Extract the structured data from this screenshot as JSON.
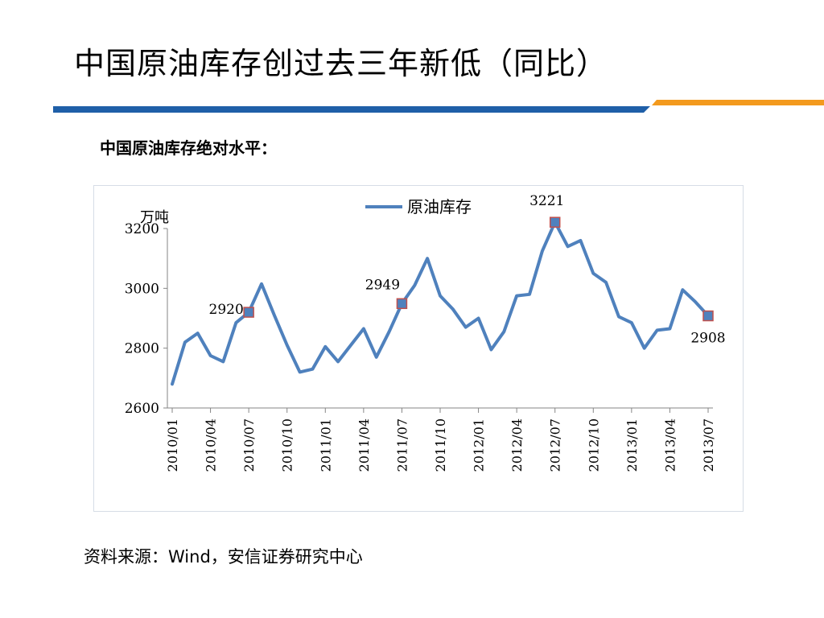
{
  "slide": {
    "title": "中国原油库存创过去三年新低（同比）",
    "subtitle": "中国原油库存绝对水平：",
    "source": "资料来源：Wind，安信证券研究中心",
    "colors": {
      "band_blue": "#1f5fa8",
      "band_orange": "#f39a1e",
      "line": "#4f81bd",
      "marker_edge": "#c0504d"
    }
  },
  "chart_data": {
    "type": "line",
    "ylabel": "万吨",
    "ylim": [
      2600,
      3200
    ],
    "yticks": [
      2600,
      2800,
      3000,
      3200
    ],
    "legend": "top-center",
    "grid": false,
    "xtick_labels": [
      "2010/01",
      "2010/04",
      "2010/07",
      "2010/10",
      "2011/01",
      "2011/04",
      "2011/07",
      "2011/10",
      "2012/01",
      "2012/04",
      "2012/07",
      "2012/10",
      "2013/01",
      "2013/04",
      "2013/07"
    ],
    "x": [
      "2010/01",
      "2010/02",
      "2010/03",
      "2010/04",
      "2010/05",
      "2010/06",
      "2010/07",
      "2010/08",
      "2010/09",
      "2010/10",
      "2010/11",
      "2010/12",
      "2011/01",
      "2011/02",
      "2011/03",
      "2011/04",
      "2011/05",
      "2011/06",
      "2011/07",
      "2011/08",
      "2011/09",
      "2011/10",
      "2011/11",
      "2011/12",
      "2012/01",
      "2012/02",
      "2012/03",
      "2012/04",
      "2012/05",
      "2012/06",
      "2012/07",
      "2012/08",
      "2012/09",
      "2012/10",
      "2012/11",
      "2012/12",
      "2013/01",
      "2013/02",
      "2013/03",
      "2013/04",
      "2013/05",
      "2013/06",
      "2013/07"
    ],
    "series": [
      {
        "name": "原油库存",
        "values": [
          2680,
          2820,
          2850,
          2775,
          2755,
          2885,
          2920,
          3015,
          2910,
          2810,
          2720,
          2730,
          2805,
          2755,
          2810,
          2865,
          2770,
          2855,
          2949,
          3010,
          3100,
          2975,
          2930,
          2870,
          2900,
          2795,
          2855,
          2975,
          2980,
          3125,
          3221,
          3140,
          3160,
          3050,
          3020,
          2905,
          2885,
          2800,
          2860,
          2865,
          2995,
          2955,
          2908
        ]
      }
    ],
    "annotations": [
      {
        "x": "2010/07",
        "value": 2920,
        "label": "2920"
      },
      {
        "x": "2011/07",
        "value": 2949,
        "label": "2949"
      },
      {
        "x": "2012/07",
        "value": 3221,
        "label": "3221"
      },
      {
        "x": "2013/07",
        "value": 2908,
        "label": "2908"
      }
    ]
  }
}
